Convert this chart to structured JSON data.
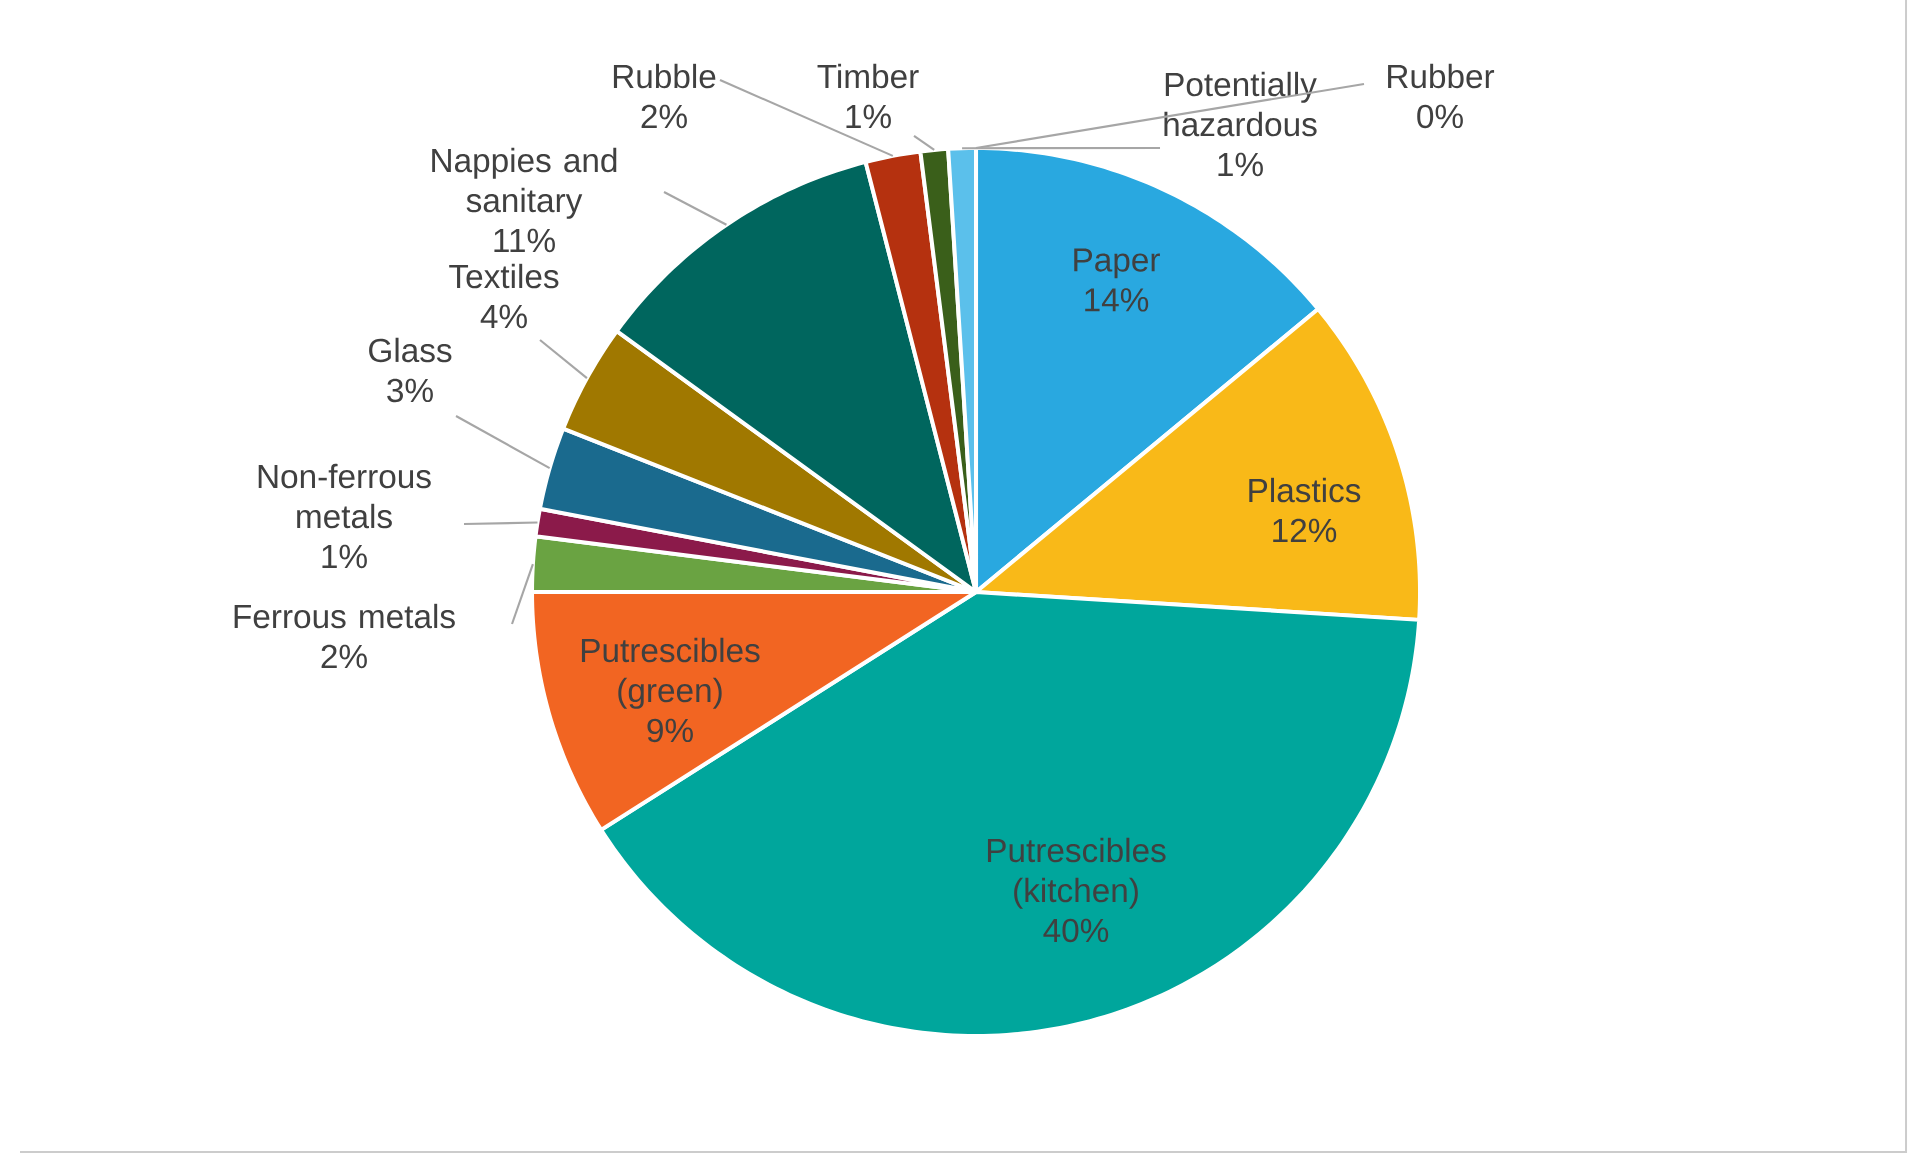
{
  "chart_data": {
    "type": "pie",
    "categories": [
      "Paper",
      "Plastics",
      "Putrescibles (kitchen)",
      "Putrescibles (green)",
      "Ferrous metals",
      "Non-ferrous metals",
      "Glass",
      "Textiles",
      "Nappies and sanitary",
      "Rubble",
      "Timber",
      "Potentially hazardous",
      "Rubber"
    ],
    "values": [
      14,
      12,
      40,
      9,
      2,
      1,
      3,
      4,
      11,
      2,
      1,
      1,
      0
    ],
    "value_labels": [
      "14%",
      "12%",
      "40%",
      "9%",
      "2%",
      "1%",
      "3%",
      "4%",
      "11%",
      "2%",
      "1%",
      "1%",
      "0%"
    ],
    "colors": [
      "#29a8e0",
      "#f9b918",
      "#00a69c",
      "#f26522",
      "#6aa342",
      "#8b1a4a",
      "#1a6a8e",
      "#a07800",
      "#00665e",
      "#b5310f",
      "#3a5f1a",
      "#5bc0eb",
      "#7f7f7f"
    ],
    "legend": false
  }
}
